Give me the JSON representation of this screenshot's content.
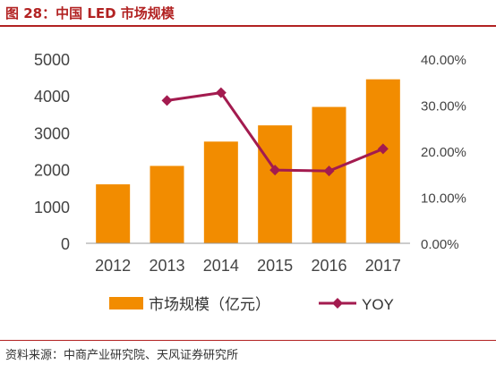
{
  "header": {
    "title": "图 28：中国 LED 市场规模"
  },
  "source": "资料来源：中商产业研究院、天风证券研究所",
  "colors": {
    "bar": "#f28c00",
    "line": "#a31b4f",
    "title": "#b22222",
    "axis_text": "#444444",
    "axis_line": "#999999"
  },
  "chart_data": {
    "type": "bar",
    "title": "",
    "categories": [
      "2012",
      "2013",
      "2014",
      "2015",
      "2016",
      "2017"
    ],
    "series": [
      {
        "name": "市场规模（亿元）",
        "type": "bar",
        "axis": "left",
        "values": [
          1600,
          2100,
          2760,
          3200,
          3700,
          4450
        ]
      },
      {
        "name": "YOY",
        "type": "line",
        "axis": "right",
        "values": [
          null,
          31.0,
          32.7,
          15.9,
          15.7,
          20.5
        ]
      }
    ],
    "y_left": {
      "ylim": [
        0,
        5000
      ],
      "ticks": [
        "0",
        "1000",
        "2000",
        "3000",
        "4000",
        "5000"
      ]
    },
    "y_right": {
      "ylim": [
        0,
        40
      ],
      "ticks": [
        "0.00%",
        "10.00%",
        "20.00%",
        "30.00%",
        "40.00%"
      ]
    },
    "grid": false,
    "legend_position": "bottom"
  }
}
